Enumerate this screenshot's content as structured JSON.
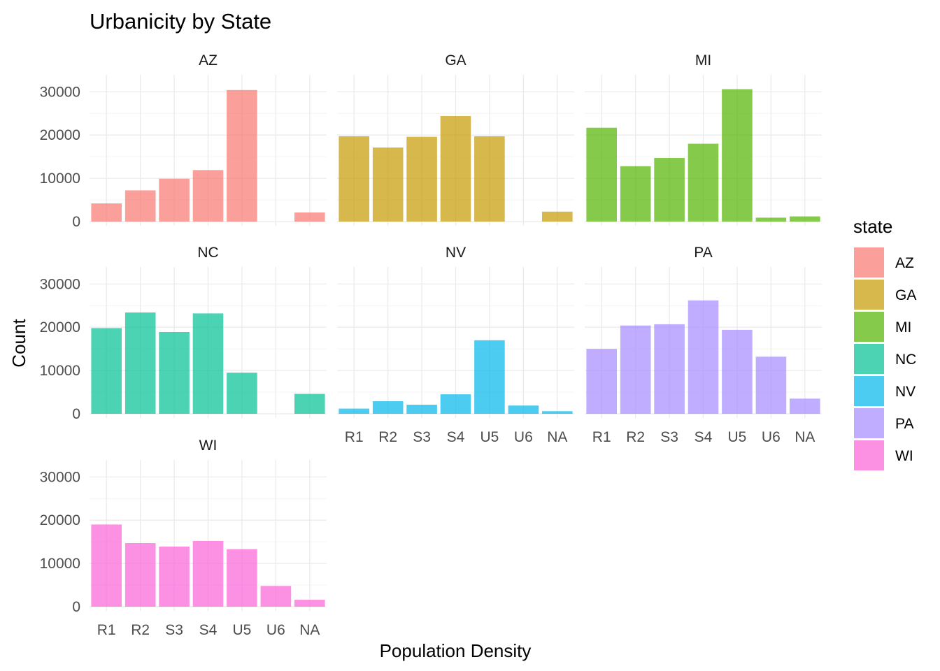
{
  "chart_data": {
    "type": "bar",
    "title": "Urbanicity by State",
    "xlabel": "Population Density",
    "ylabel": "Count",
    "categories": [
      "R1",
      "R2",
      "S3",
      "S4",
      "U5",
      "U6",
      "NA"
    ],
    "y_ticks": [
      0,
      10000,
      20000,
      30000
    ],
    "ylim": [
      0,
      31500
    ],
    "grid": true,
    "legend": {
      "title": "state",
      "position": "right"
    },
    "series": [
      {
        "name": "AZ",
        "color": "#F8766D",
        "values": [
          4200,
          7200,
          9900,
          11900,
          30400,
          0,
          2100
        ]
      },
      {
        "name": "GA",
        "color": "#C49A00",
        "values": [
          19700,
          17100,
          19600,
          24400,
          19700,
          0,
          2300
        ]
      },
      {
        "name": "MI",
        "color": "#53B400",
        "values": [
          21700,
          12800,
          14700,
          18000,
          30600,
          900,
          1200
        ]
      },
      {
        "name": "NC",
        "color": "#00C094",
        "values": [
          19800,
          23400,
          18900,
          23200,
          9500,
          0,
          4600
        ]
      },
      {
        "name": "NV",
        "color": "#00B6EB",
        "values": [
          1200,
          2900,
          2100,
          4500,
          17000,
          1900,
          600
        ]
      },
      {
        "name": "PA",
        "color": "#A58AFF",
        "values": [
          15000,
          20400,
          20700,
          26200,
          19400,
          13200,
          3500
        ]
      },
      {
        "name": "WI",
        "color": "#FB61D7",
        "values": [
          19000,
          14700,
          13900,
          15200,
          13300,
          4800,
          1600
        ]
      }
    ]
  }
}
